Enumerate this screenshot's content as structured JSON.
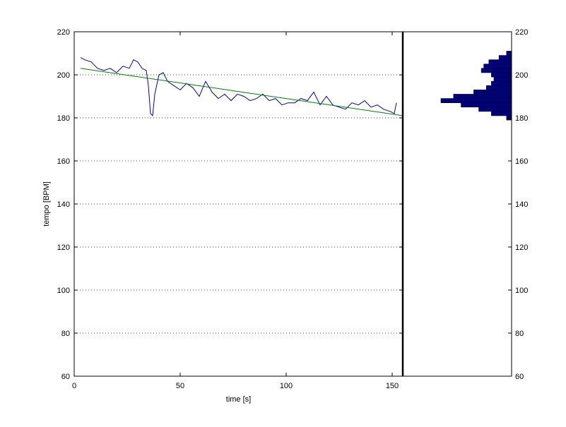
{
  "chart_data": [
    {
      "type": "line",
      "xlabel": "time [s]",
      "ylabel": "tempo [BPM]",
      "xlim": [
        0,
        155
      ],
      "ylim": [
        60,
        220
      ],
      "xticks": [
        "0",
        "50",
        "100",
        "150"
      ],
      "yticks": [
        "60",
        "80",
        "100",
        "120",
        "140",
        "160",
        "180",
        "200",
        "220"
      ],
      "grid": "horizontal dotted",
      "vertical_marker_x": 155,
      "series": [
        {
          "color": "#0000b0",
          "x": [
            3,
            5,
            8,
            11,
            14,
            17,
            20,
            23,
            26,
            28,
            30,
            32,
            34,
            35,
            36,
            37,
            38,
            40,
            42,
            44,
            47,
            50,
            53,
            56,
            59,
            62,
            65,
            68,
            71,
            74,
            77,
            80,
            83,
            86,
            89,
            92,
            95,
            98,
            101,
            104,
            107,
            110,
            113,
            116,
            119,
            122,
            125,
            128,
            131,
            134,
            137,
            140,
            143,
            146,
            149,
            151,
            152
          ],
          "y": [
            208,
            207,
            206,
            203,
            202,
            203,
            201,
            204,
            203,
            207,
            206,
            203,
            202,
            195,
            182,
            181,
            191,
            200,
            201,
            197,
            195,
            193,
            196,
            194,
            190,
            197,
            192,
            189,
            191,
            188,
            191,
            190,
            188,
            189,
            191,
            188,
            189,
            186,
            187,
            187,
            189,
            188,
            192,
            186,
            190,
            186,
            185,
            184,
            187,
            186,
            188,
            185,
            186,
            184,
            183,
            182,
            187
          ]
        },
        {
          "color": "#008000",
          "x": [
            3,
            155
          ],
          "y": [
            203,
            181
          ]
        }
      ]
    },
    {
      "type": "bar",
      "orientation": "horizontal",
      "ylim": [
        60,
        220
      ],
      "yticks": [
        "60",
        "80",
        "100",
        "120",
        "140",
        "160",
        "180",
        "200",
        "220"
      ],
      "color": "#00007f",
      "bins": [
        180,
        182,
        184,
        186,
        188,
        190,
        192,
        194,
        196,
        198,
        200,
        202,
        204,
        206,
        208,
        210
      ],
      "counts": [
        2,
        8,
        13,
        20,
        28,
        23,
        15,
        10,
        8,
        7,
        8,
        12,
        11,
        9,
        5,
        2
      ]
    }
  ]
}
